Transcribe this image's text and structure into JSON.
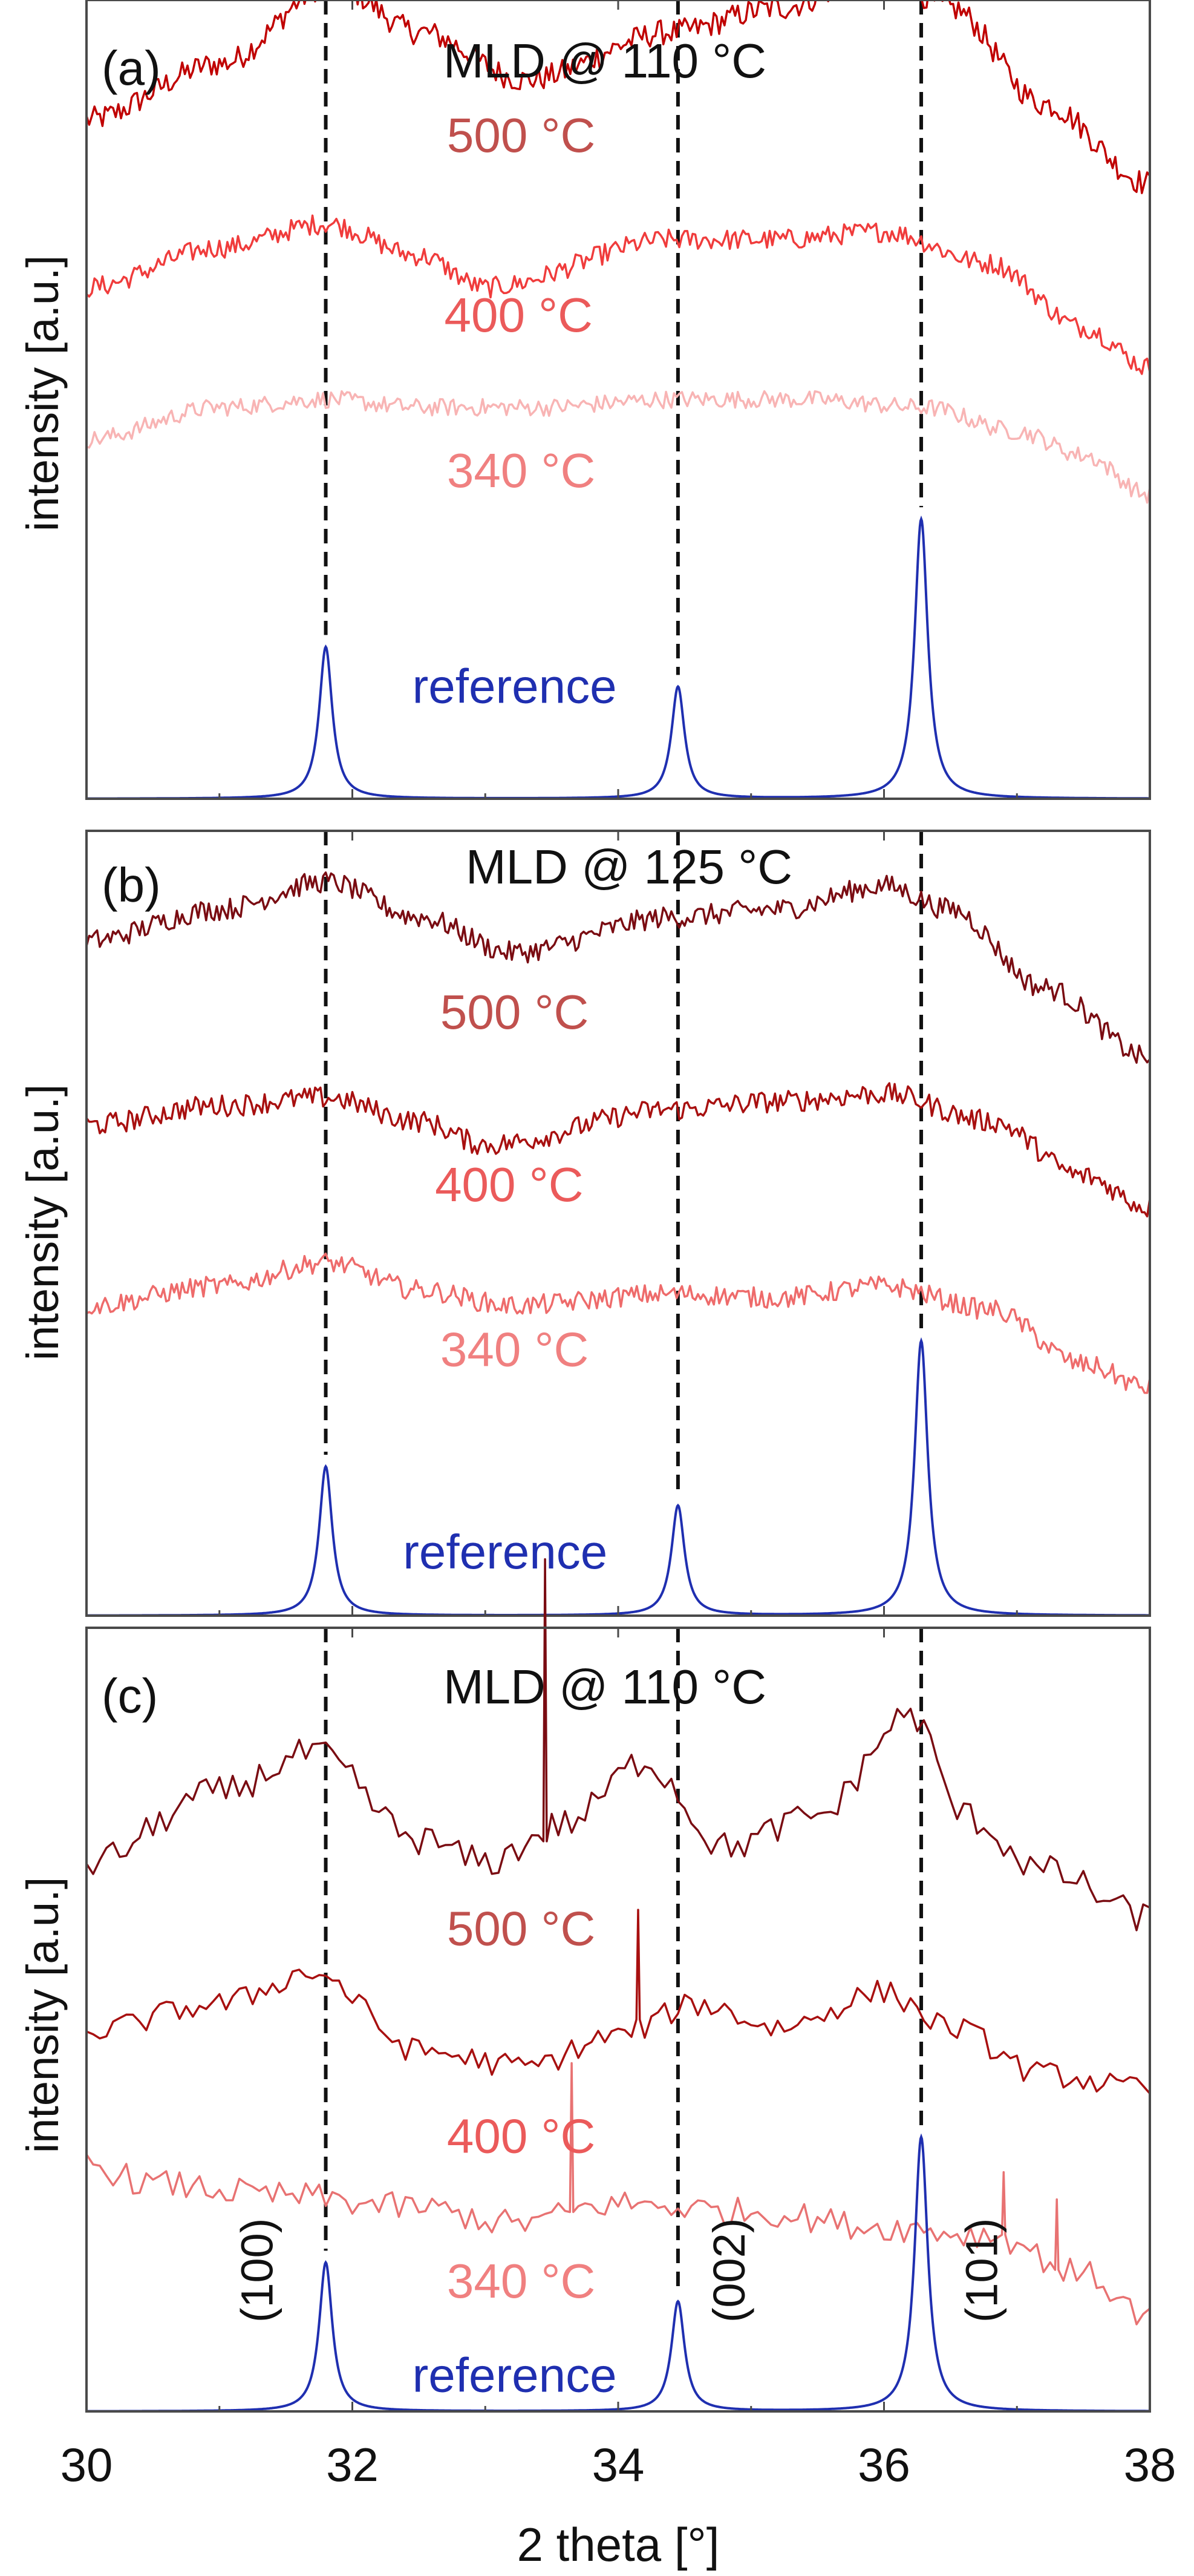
{
  "chart_data": {
    "type": "line",
    "shared": {
      "xlabel": "2 theta [°]",
      "ylabel": "intensity [a.u.]",
      "xlim": [
        30,
        38
      ],
      "ylim": [
        0,
        10
      ],
      "xticks": [
        30,
        32,
        34,
        36,
        38
      ],
      "peak_positions": [
        31.8,
        34.45,
        36.28
      ],
      "reference_peaks": [
        {
          "x": 31.8,
          "height": 1.9,
          "width": 0.06
        },
        {
          "x": 34.45,
          "height": 1.4,
          "width": 0.06
        },
        {
          "x": 36.28,
          "height": 3.5,
          "width": 0.06
        }
      ],
      "hkl_labels": [
        {
          "text": "(100)",
          "x": 31.4
        },
        {
          "text": "(002)",
          "x": 34.95
        },
        {
          "text": "(101)",
          "x": 36.85
        }
      ]
    },
    "panels": [
      {
        "id": "a",
        "tag": "(a)",
        "title": "MLD @ 110 °C",
        "series": [
          {
            "name": "500 °C",
            "color": "#c00000",
            "noise": 0.16,
            "step": 0.02,
            "anchors": [
              [
                30,
                8.5
              ],
              [
                31,
                9.2
              ],
              [
                31.85,
                10.2
              ],
              [
                32.5,
                9.6
              ],
              [
                33.3,
                9.0
              ],
              [
                34.4,
                9.6
              ],
              [
                35.2,
                9.9
              ],
              [
                36.0,
                10.35
              ],
              [
                36.5,
                9.9
              ],
              [
                37.2,
                8.7
              ],
              [
                38,
                7.7
              ]
            ]
          },
          {
            "name": "400 °C",
            "color": "#f03c3c",
            "noise": 0.13,
            "step": 0.02,
            "anchors": [
              [
                30,
                6.4
              ],
              [
                31,
                6.9
              ],
              [
                31.8,
                7.2
              ],
              [
                32.5,
                6.8
              ],
              [
                33.0,
                6.4
              ],
              [
                34.4,
                7.0
              ],
              [
                35.2,
                7.0
              ],
              [
                36.0,
                7.1
              ],
              [
                36.8,
                6.7
              ],
              [
                37.5,
                5.9
              ],
              [
                38,
                5.4
              ]
            ]
          },
          {
            "name": "340 °C",
            "color": "#f8b4b4",
            "noise": 0.11,
            "step": 0.02,
            "anchors": [
              [
                30,
                4.5
              ],
              [
                31,
                4.9
              ],
              [
                31.8,
                5.0
              ],
              [
                32.5,
                4.9
              ],
              [
                33.4,
                4.9
              ],
              [
                34.4,
                5.0
              ],
              [
                35.4,
                5.0
              ],
              [
                36.3,
                4.9
              ],
              [
                37.0,
                4.6
              ],
              [
                37.5,
                4.3
              ],
              [
                38,
                3.8
              ]
            ]
          }
        ],
        "labels": [
          {
            "text": "500 °C",
            "color": "#c0504d",
            "x": 33.27,
            "y": 8.1
          },
          {
            "text": "400 °C",
            "color": "#eb5a5a",
            "x": 33.25,
            "y": 5.85
          },
          {
            "text": "340 °C",
            "color": "#f08080",
            "x": 33.27,
            "y": 3.9
          },
          {
            "text": "reference",
            "color": "#1f2fb0",
            "x": 33.22,
            "y": 1.2
          }
        ]
      },
      {
        "id": "b",
        "tag": "(b)",
        "title": "MLD @ 125 °C",
        "series": [
          {
            "name": "500 °C",
            "color": "#7a0c12",
            "noise": 0.14,
            "step": 0.02,
            "anchors": [
              [
                30,
                8.6
              ],
              [
                31,
                9.0
              ],
              [
                31.8,
                9.35
              ],
              [
                32.5,
                8.9
              ],
              [
                33.2,
                8.45
              ],
              [
                34.4,
                8.9
              ],
              [
                35.2,
                9.0
              ],
              [
                36.0,
                9.3
              ],
              [
                36.5,
                9.0
              ],
              [
                37.2,
                8.0
              ],
              [
                38,
                7.1
              ]
            ]
          },
          {
            "name": "400 °C",
            "color": "#a81010",
            "noise": 0.14,
            "step": 0.02,
            "anchors": [
              [
                30,
                6.25
              ],
              [
                31,
                6.5
              ],
              [
                31.8,
                6.6
              ],
              [
                32.5,
                6.3
              ],
              [
                33.0,
                6.0
              ],
              [
                34.4,
                6.45
              ],
              [
                35.2,
                6.55
              ],
              [
                36.0,
                6.65
              ],
              [
                36.8,
                6.3
              ],
              [
                37.5,
                5.6
              ],
              [
                38,
                5.2
              ]
            ]
          },
          {
            "name": "340 °C",
            "color": "#ee6b6b",
            "noise": 0.13,
            "step": 0.02,
            "anchors": [
              [
                30,
                3.95
              ],
              [
                31,
                4.2
              ],
              [
                31.8,
                4.5
              ],
              [
                32.5,
                4.15
              ],
              [
                33.2,
                3.95
              ],
              [
                34.4,
                4.1
              ],
              [
                35.2,
                4.05
              ],
              [
                36.0,
                4.2
              ],
              [
                36.8,
                3.9
              ],
              [
                37.5,
                3.2
              ],
              [
                38,
                2.9
              ]
            ]
          }
        ],
        "labels": [
          {
            "text": "500 °C",
            "color": "#c0504d",
            "x": 33.22,
            "y": 7.48
          },
          {
            "text": "400 °C",
            "color": "#eb5a5a",
            "x": 33.18,
            "y": 5.28
          },
          {
            "text": "340 °C",
            "color": "#f08080",
            "x": 33.22,
            "y": 3.18
          },
          {
            "text": "reference",
            "color": "#1f2fb0",
            "x": 33.15,
            "y": 0.6
          }
        ]
      },
      {
        "id": "c",
        "tag": "(c)",
        "title": "MLD @ 110 °C",
        "series": [
          {
            "name": "500 °C",
            "color": "#7a0c12",
            "noise": 0.2,
            "step": 0.05,
            "anchors": [
              [
                30,
                7.0
              ],
              [
                31,
                7.9
              ],
              [
                31.7,
                8.4
              ],
              [
                32.5,
                7.3
              ],
              [
                33.0,
                7.0
              ],
              [
                33.6,
                7.5
              ],
              [
                34.2,
                8.3
              ],
              [
                34.8,
                7.2
              ],
              [
                35.5,
                7.6
              ],
              [
                36.2,
                8.9
              ],
              [
                36.6,
                7.6
              ],
              [
                37.2,
                6.9
              ],
              [
                38,
                6.3
              ]
            ],
            "spikes": [
              {
                "x": 33.45,
                "h": 3.6
              }
            ]
          },
          {
            "name": "400 °C",
            "color": "#a81010",
            "noise": 0.16,
            "step": 0.05,
            "anchors": [
              [
                30,
                4.85
              ],
              [
                31,
                5.2
              ],
              [
                31.7,
                5.6
              ],
              [
                32.5,
                4.6
              ],
              [
                33.3,
                4.4
              ],
              [
                34.0,
                4.8
              ],
              [
                34.6,
                5.2
              ],
              [
                35.2,
                4.9
              ],
              [
                36.0,
                5.35
              ],
              [
                36.5,
                4.9
              ],
              [
                37.2,
                4.3
              ],
              [
                38,
                4.1
              ]
            ],
            "spikes": [
              {
                "x": 34.15,
                "h": 1.4
              }
            ]
          },
          {
            "name": "340 °C",
            "color": "#e87272",
            "noise": 0.18,
            "step": 0.05,
            "anchors": [
              [
                30,
                3.15
              ],
              [
                30.5,
                2.9
              ],
              [
                31.5,
                2.75
              ],
              [
                32.5,
                2.6
              ],
              [
                33.2,
                2.4
              ],
              [
                34.0,
                2.65
              ],
              [
                35.0,
                2.55
              ],
              [
                36.0,
                2.35
              ],
              [
                36.8,
                2.25
              ],
              [
                37.5,
                1.75
              ],
              [
                38,
                1.2
              ]
            ],
            "spikes": [
              {
                "x": 33.65,
                "h": 1.9
              },
              {
                "x": 36.92,
                "h": 0.8
              },
              {
                "x": 37.32,
                "h": 0.9
              }
            ]
          }
        ],
        "labels": [
          {
            "text": "500 °C",
            "color": "#c0504d",
            "x": 33.27,
            "y": 5.95
          },
          {
            "text": "400 °C",
            "color": "#eb5a5a",
            "x": 33.27,
            "y": 3.3
          },
          {
            "text": "340 °C",
            "color": "#f08080",
            "x": 33.27,
            "y": 1.45
          },
          {
            "text": "reference",
            "color": "#1f2fb0",
            "x": 33.22,
            "y": 0.25
          }
        ],
        "show_hkl": true,
        "show_xlabels": true
      }
    ]
  }
}
